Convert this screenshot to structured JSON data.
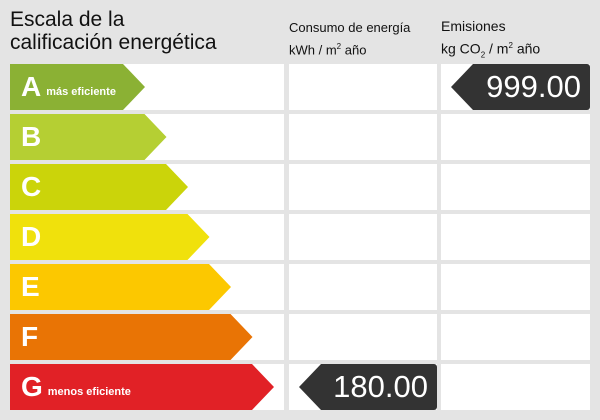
{
  "title_line1": "Escala de la",
  "title_line2": "calificación energética",
  "consumo": {
    "line1": "Consumo de energía",
    "line2_pre": "kWh / m",
    "sup": "2",
    "line2_post": " año"
  },
  "emisiones": {
    "line1": "Emisiones",
    "pre": "kg CO",
    "sub": "2",
    "mid": " / m",
    "sup": "2",
    "post": " año"
  },
  "ratings": [
    {
      "letter": "A",
      "label": "más eficiente",
      "color": "#8bb134"
    },
    {
      "letter": "B",
      "label": "",
      "color": "#b5cf33"
    },
    {
      "letter": "C",
      "label": "",
      "color": "#cbd40a"
    },
    {
      "letter": "D",
      "label": "",
      "color": "#f0e10c"
    },
    {
      "letter": "E",
      "label": "",
      "color": "#fcc800"
    },
    {
      "letter": "F",
      "label": "",
      "color": "#e97405"
    },
    {
      "letter": "G",
      "label": "menos eficiente",
      "color": "#e12126"
    }
  ],
  "consumo_value": {
    "rating": "G",
    "value": "180.00"
  },
  "emisiones_value": {
    "rating": "A",
    "value": "999.00"
  }
}
